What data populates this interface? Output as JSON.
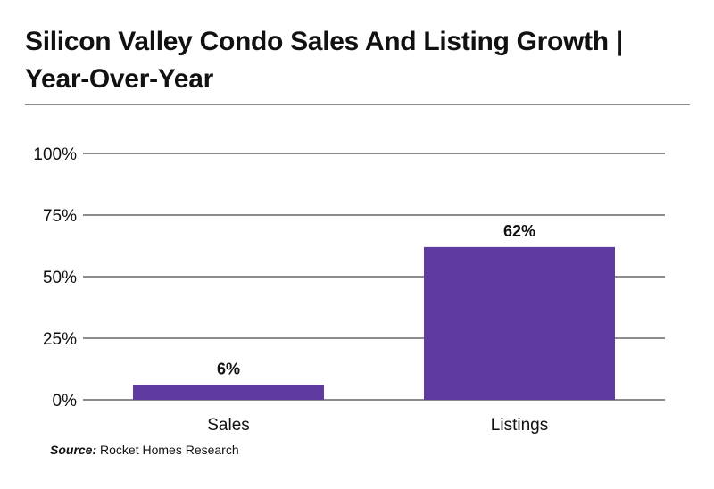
{
  "title": "Silicon Valley Condo Sales And Listing Growth | Year-Over-Year",
  "source": {
    "label": "Source:",
    "text": "Rocket Homes Research"
  },
  "colors": {
    "bar": "#5e3aa1",
    "grid": "#1a1a1a",
    "rule": "#8a8a8a"
  },
  "chart_data": {
    "type": "bar",
    "title": "Silicon Valley Condo Sales And Listing Growth | Year-Over-Year",
    "xlabel": "",
    "ylabel": "",
    "categories": [
      "Sales",
      "Listings"
    ],
    "values": [
      6,
      62
    ],
    "data_labels": [
      "6%",
      "62%"
    ],
    "ylim": [
      0,
      100
    ],
    "yticks": [
      0,
      25,
      50,
      75,
      100
    ],
    "ytick_labels": [
      "0%",
      "25%",
      "50%",
      "75%",
      "100%"
    ],
    "grid": true,
    "legend": "none"
  }
}
